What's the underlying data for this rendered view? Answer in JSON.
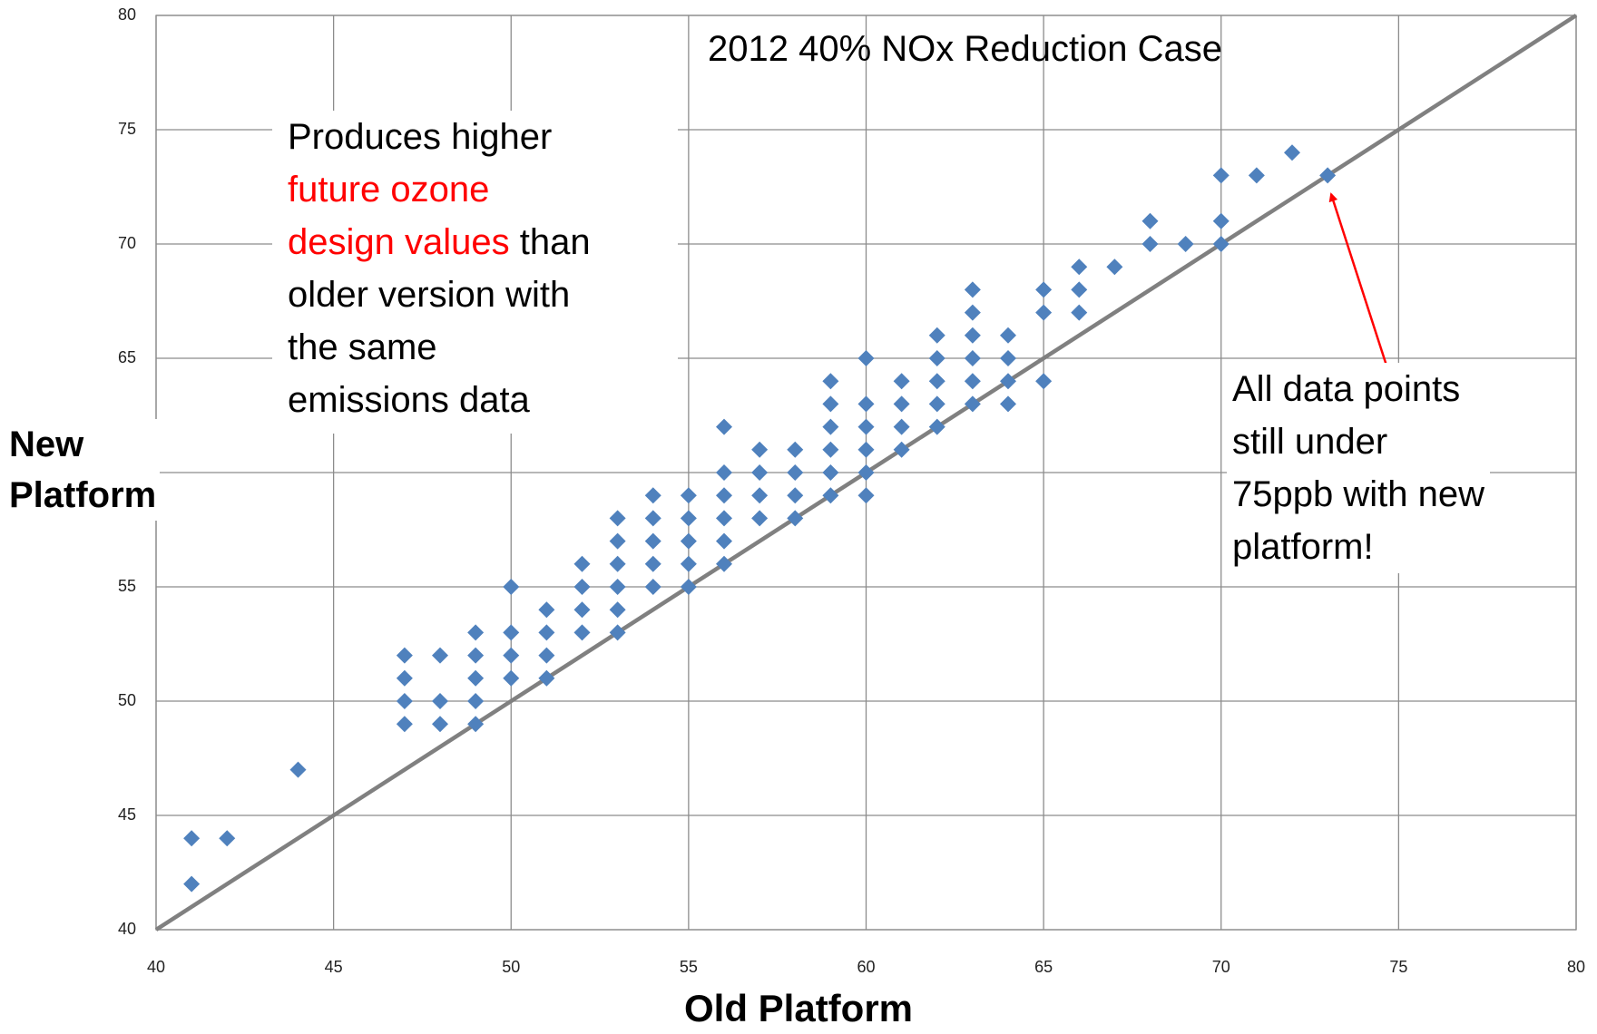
{
  "chart_data": {
    "type": "scatter",
    "title": "2012 40% NOx Reduction Case",
    "x_label": "Old Platform",
    "y_label": [
      "New",
      "Platform"
    ],
    "color": "#4f81bd",
    "x": [
      41,
      41,
      42,
      44,
      47,
      47,
      47,
      47,
      48,
      48,
      48,
      49,
      49,
      49,
      49,
      49,
      50,
      50,
      50,
      50,
      51,
      51,
      51,
      51,
      52,
      52,
      52,
      52,
      53,
      53,
      53,
      53,
      53,
      53,
      54,
      54,
      54,
      54,
      54,
      55,
      55,
      55,
      55,
      55,
      56,
      56,
      56,
      56,
      56,
      56,
      57,
      57,
      57,
      57,
      58,
      58,
      58,
      58,
      59,
      59,
      59,
      59,
      59,
      59,
      60,
      60,
      60,
      60,
      60,
      60,
      61,
      61,
      61,
      61,
      62,
      62,
      62,
      62,
      62,
      63,
      63,
      63,
      63,
      63,
      63,
      64,
      64,
      64,
      64,
      65,
      65,
      65,
      66,
      66,
      66,
      67,
      68,
      68,
      69,
      70,
      70,
      70,
      71,
      72,
      73
    ],
    "values": [
      44,
      42,
      44,
      47,
      52,
      51,
      50,
      49,
      52,
      50,
      49,
      53,
      52,
      51,
      50,
      49,
      55,
      53,
      52,
      51,
      54,
      53,
      52,
      51,
      56,
      55,
      54,
      53,
      58,
      57,
      56,
      55,
      54,
      53,
      59,
      58,
      57,
      56,
      55,
      59,
      58,
      57,
      56,
      55,
      62,
      60,
      59,
      58,
      57,
      56,
      61,
      60,
      59,
      58,
      61,
      60,
      59,
      58,
      64,
      63,
      62,
      61,
      60,
      59,
      65,
      63,
      62,
      61,
      60,
      59,
      64,
      63,
      62,
      61,
      66,
      65,
      64,
      63,
      62,
      68,
      67,
      66,
      65,
      64,
      63,
      66,
      65,
      64,
      63,
      68,
      67,
      64,
      69,
      68,
      67,
      69,
      71,
      70,
      70,
      73,
      71,
      70,
      73,
      74,
      73
    ],
    "xlim": [
      40,
      80
    ],
    "ylim": [
      40,
      80
    ],
    "xticks": [
      40,
      45,
      50,
      55,
      60,
      65,
      70,
      75,
      80
    ],
    "yticks": [
      40,
      45,
      50,
      55,
      60,
      65,
      70,
      75,
      80
    ],
    "grid": true,
    "reference_line": "y = x",
    "annotations": [
      {
        "lines": [
          [
            {
              "text": "Produces higher",
              "color": "#000000"
            }
          ],
          [
            {
              "text": "future ozone",
              "color": "#ff0000"
            }
          ],
          [
            {
              "text": "design values",
              "color": "#ff0000"
            },
            {
              "text": " than",
              "color": "#000000"
            }
          ],
          [
            {
              "text": "older version with",
              "color": "#000000"
            }
          ],
          [
            {
              "text": "the same",
              "color": "#000000"
            }
          ],
          [
            {
              "text": "emissions data",
              "color": "#000000"
            }
          ]
        ]
      },
      {
        "lines": [
          [
            {
              "text": "All data points",
              "color": "#000000"
            }
          ],
          [
            {
              "text": "still under",
              "color": "#000000"
            }
          ],
          [
            {
              "text": "75ppb with new",
              "color": "#000000"
            }
          ],
          [
            {
              "text": "platform!",
              "color": "#000000"
            }
          ]
        ]
      }
    ]
  }
}
